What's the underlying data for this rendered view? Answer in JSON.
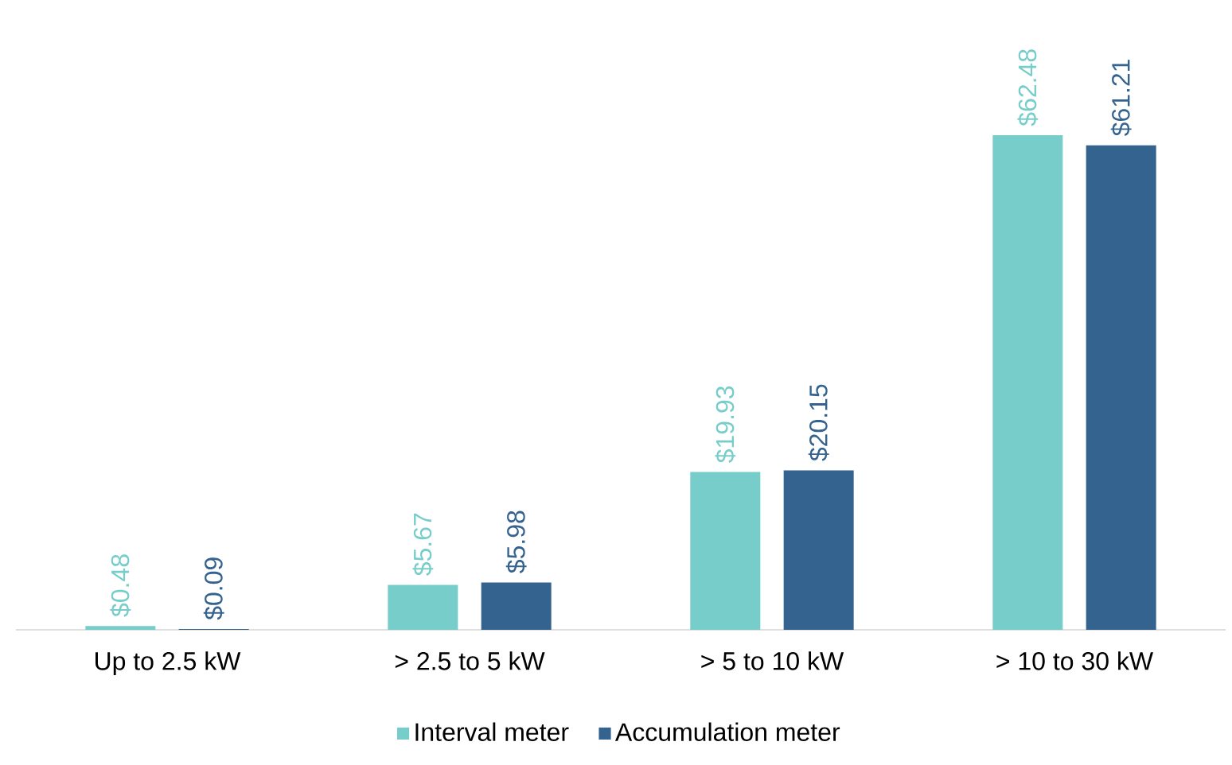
{
  "chart_data": {
    "type": "bar",
    "categories": [
      "Up to 2.5 kW",
      "> 2.5 to 5 kW",
      "> 5 to 10 kW",
      "> 10 to 30 kW"
    ],
    "series": [
      {
        "name": "Interval meter",
        "color": "#76cdc9",
        "values": [
          0.48,
          5.67,
          19.93,
          62.48
        ],
        "value_labels": [
          "$0.48",
          "$5.67",
          "$19.93",
          "$62.48"
        ]
      },
      {
        "name": "Accumulation meter",
        "color": "#35638f",
        "values": [
          0.09,
          5.98,
          20.15,
          61.21
        ],
        "value_labels": [
          "$0.09",
          "$5.98",
          "$20.15",
          "$61.21"
        ]
      }
    ],
    "legend": "bottom"
  }
}
